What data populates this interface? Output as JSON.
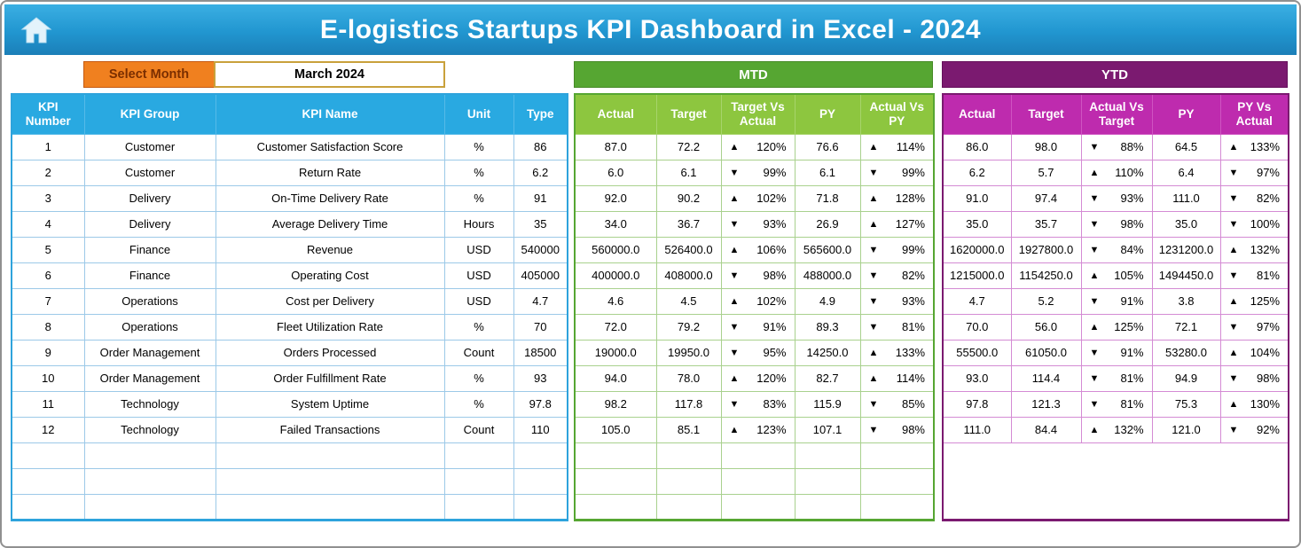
{
  "app": {
    "title": "E-logistics Startups KPI Dashboard in Excel - 2024"
  },
  "month_selector": {
    "label": "Select Month",
    "value": "March 2024"
  },
  "kpi_table": {
    "headers": [
      "KPI Number",
      "KPI Group",
      "KPI Name",
      "Unit",
      "Type"
    ]
  },
  "mtd": {
    "title": "MTD",
    "headers": [
      "Actual",
      "Target",
      "Target Vs Actual",
      "PY",
      "Actual Vs PY"
    ]
  },
  "ytd": {
    "title": "YTD",
    "headers": [
      "Actual",
      "Target",
      "Actual Vs Target",
      "PY",
      "PY Vs Actual"
    ]
  },
  "rows": [
    {
      "kpi": [
        "1",
        "Customer",
        "Customer Satisfaction Score",
        "%",
        "86"
      ],
      "mtd": [
        "87.0",
        "72.2",
        "▲ 120%",
        "76.6",
        "▲ 114%"
      ],
      "ytd": [
        "86.0",
        "98.0",
        "▼ 88%",
        "64.5",
        "▲ 133%"
      ]
    },
    {
      "kpi": [
        "2",
        "Customer",
        "Return Rate",
        "%",
        "6.2"
      ],
      "mtd": [
        "6.0",
        "6.1",
        "▼ 99%",
        "6.1",
        "▼ 99%"
      ],
      "ytd": [
        "6.2",
        "5.7",
        "▲ 110%",
        "6.4",
        "▼ 97%"
      ]
    },
    {
      "kpi": [
        "3",
        "Delivery",
        "On-Time Delivery Rate",
        "%",
        "91"
      ],
      "mtd": [
        "92.0",
        "90.2",
        "▲ 102%",
        "71.8",
        "▲ 128%"
      ],
      "ytd": [
        "91.0",
        "97.4",
        "▼ 93%",
        "111.0",
        "▼ 82%"
      ]
    },
    {
      "kpi": [
        "4",
        "Delivery",
        "Average Delivery Time",
        "Hours",
        "35"
      ],
      "mtd": [
        "34.0",
        "36.7",
        "▼ 93%",
        "26.9",
        "▲ 127%"
      ],
      "ytd": [
        "35.0",
        "35.7",
        "▼ 98%",
        "35.0",
        "▼ 100%"
      ]
    },
    {
      "kpi": [
        "5",
        "Finance",
        "Revenue",
        "USD",
        "540000"
      ],
      "mtd": [
        "560000.0",
        "526400.0",
        "▲ 106%",
        "565600.0",
        "▼ 99%"
      ],
      "ytd": [
        "1620000.0",
        "1927800.0",
        "▼ 84%",
        "1231200.0",
        "▲ 132%"
      ]
    },
    {
      "kpi": [
        "6",
        "Finance",
        "Operating Cost",
        "USD",
        "405000"
      ],
      "mtd": [
        "400000.0",
        "408000.0",
        "▼ 98%",
        "488000.0",
        "▼ 82%"
      ],
      "ytd": [
        "1215000.0",
        "1154250.0",
        "▲ 105%",
        "1494450.0",
        "▼ 81%"
      ]
    },
    {
      "kpi": [
        "7",
        "Operations",
        "Cost per Delivery",
        "USD",
        "4.7"
      ],
      "mtd": [
        "4.6",
        "4.5",
        "▲ 102%",
        "4.9",
        "▼ 93%"
      ],
      "ytd": [
        "4.7",
        "5.2",
        "▼ 91%",
        "3.8",
        "▲ 125%"
      ]
    },
    {
      "kpi": [
        "8",
        "Operations",
        "Fleet Utilization Rate",
        "%",
        "70"
      ],
      "mtd": [
        "72.0",
        "79.2",
        "▼ 91%",
        "89.3",
        "▼ 81%"
      ],
      "ytd": [
        "70.0",
        "56.0",
        "▲ 125%",
        "72.1",
        "▼ 97%"
      ]
    },
    {
      "kpi": [
        "9",
        "Order Management",
        "Orders Processed",
        "Count",
        "18500"
      ],
      "mtd": [
        "19000.0",
        "19950.0",
        "▼ 95%",
        "14250.0",
        "▲ 133%"
      ],
      "ytd": [
        "55500.0",
        "61050.0",
        "▼ 91%",
        "53280.0",
        "▲ 104%"
      ]
    },
    {
      "kpi": [
        "10",
        "Order Management",
        "Order Fulfillment Rate",
        "%",
        "93"
      ],
      "mtd": [
        "94.0",
        "78.0",
        "▲ 120%",
        "82.7",
        "▲ 114%"
      ],
      "ytd": [
        "93.0",
        "114.4",
        "▼ 81%",
        "94.9",
        "▼ 98%"
      ]
    },
    {
      "kpi": [
        "11",
        "Technology",
        "System Uptime",
        "%",
        "97.8"
      ],
      "mtd": [
        "98.2",
        "117.8",
        "▼ 83%",
        "115.9",
        "▼ 85%"
      ],
      "ytd": [
        "97.8",
        "121.3",
        "▼ 81%",
        "75.3",
        "▲ 130%"
      ]
    },
    {
      "kpi": [
        "12",
        "Technology",
        "Failed Transactions",
        "Count",
        "110"
      ],
      "mtd": [
        "105.0",
        "85.1",
        "▲ 123%",
        "107.1",
        "▼ 98%"
      ],
      "ytd": [
        "111.0",
        "84.4",
        "▲ 132%",
        "121.0",
        "▼ 92%"
      ]
    }
  ],
  "empty_rows": 3,
  "icons": {
    "home": "🏠",
    "up_arrow": "▲",
    "down_arrow": "▼"
  },
  "colors": {
    "header_blue": "#2196D0",
    "table_header_blue": "#29A9E1",
    "select_month_orange": "#F0801F",
    "mtd_green": "#56A632",
    "mtd_header_green": "#8DC63F",
    "ytd_purple": "#7B1A70",
    "ytd_header_magenta": "#BE2BAE"
  }
}
